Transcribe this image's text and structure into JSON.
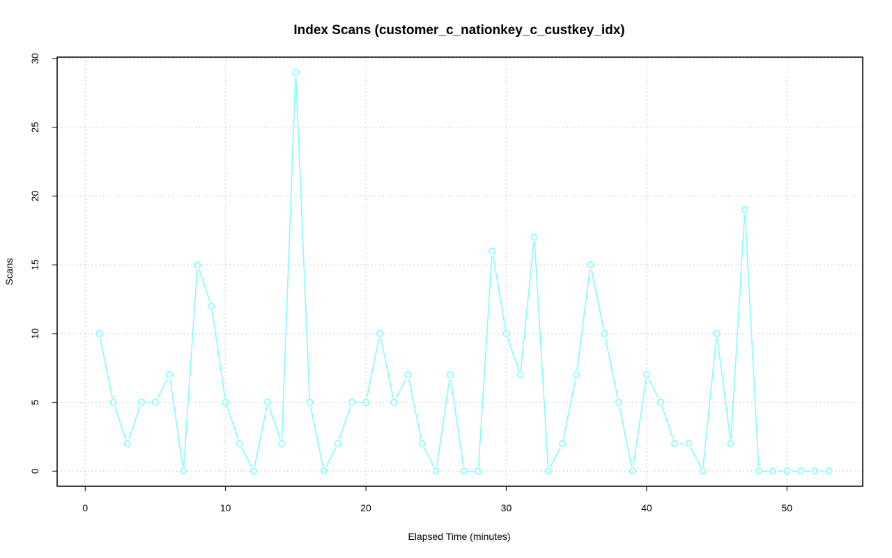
{
  "chart_data": {
    "type": "line",
    "title": "Index Scans (customer_c_nationkey_c_custkey_idx)",
    "xlabel": "Elapsed Time (minutes)",
    "ylabel": "Scans",
    "xlim": [
      -2,
      55.4
    ],
    "ylim": [
      -1.1,
      30.1
    ],
    "xticks": [
      0,
      10,
      20,
      30,
      40,
      50
    ],
    "yticks": [
      0,
      5,
      10,
      15,
      20,
      25,
      30
    ],
    "grid": true,
    "color": "#7fffff",
    "series": [
      {
        "x": [
          1,
          2,
          3,
          4,
          5,
          6,
          7,
          8,
          9,
          10,
          11,
          12,
          13,
          14,
          15,
          16,
          17,
          18,
          19,
          20,
          21,
          22,
          23,
          24,
          25,
          26,
          27,
          28,
          29,
          30,
          31,
          32,
          33,
          34,
          35,
          36,
          37,
          38,
          39,
          40,
          41,
          42,
          43,
          44,
          45,
          46,
          47,
          48,
          49,
          50,
          51,
          52,
          53
        ],
        "values": [
          10,
          5,
          2,
          5,
          5,
          7,
          0,
          15,
          12,
          5,
          2,
          0,
          5,
          2,
          29,
          5,
          0,
          2,
          5,
          5,
          10,
          5,
          7,
          2,
          0,
          7,
          0,
          0,
          16,
          10,
          7,
          17,
          0,
          2,
          7,
          15,
          10,
          5,
          0,
          7,
          5,
          2,
          2,
          0,
          10,
          2,
          19,
          0,
          0,
          0,
          0,
          0,
          0
        ]
      }
    ]
  }
}
